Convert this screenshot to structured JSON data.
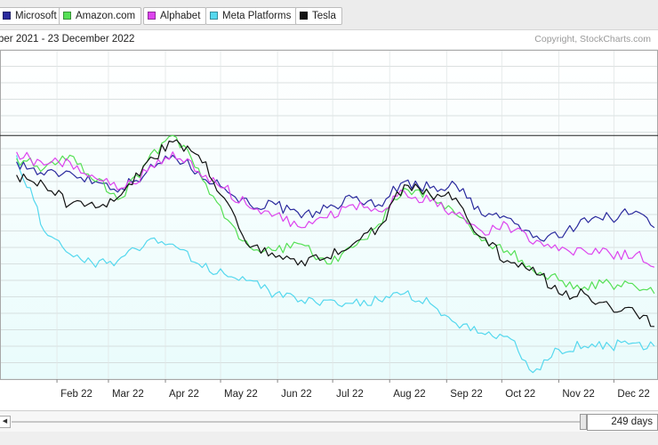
{
  "legend": [
    {
      "name": "Microsoft",
      "color": "#2b2b9e"
    },
    {
      "name": "Amazon.com",
      "color": "#55e055"
    },
    {
      "name": "Alphabet",
      "color": "#dd44ee"
    },
    {
      "name": "Meta Platforms",
      "color": "#55d8ee"
    },
    {
      "name": "Tesla",
      "color": "#111111"
    }
  ],
  "header": {
    "date_range": "ber 2021 - 23 December 2022",
    "copyright": "Copyright, StockCharts.com"
  },
  "footer": {
    "days_value": "249 days",
    "scroll_left_icon": "left-arrow-icon"
  },
  "chart_data": {
    "type": "line",
    "title": "",
    "xlabel": "",
    "ylabel": "",
    "legend_position": "top",
    "grid": true,
    "background": "#e9fcfc",
    "x": [
      "2022-01-10",
      "2022-01-25",
      "2022-02-08",
      "2022-02-22",
      "2022-03-08",
      "2022-03-22",
      "2022-04-05",
      "2022-04-19",
      "2022-05-03",
      "2022-05-17",
      "2022-05-31",
      "2022-06-14",
      "2022-06-28",
      "2022-07-12",
      "2022-07-26",
      "2022-08-09",
      "2022-08-23",
      "2022-09-06",
      "2022-09-20",
      "2022-10-04",
      "2022-10-18",
      "2022-11-01",
      "2022-11-15",
      "2022-11-29",
      "2022-12-13",
      "2022-12-23"
    ],
    "x_tick_labels": [
      "Feb 22",
      "Mar 22",
      "Apr 22",
      "May 22",
      "Jun 22",
      "Jul 22",
      "Aug 22",
      "Sep 22",
      "Oct 22",
      "Nov 22",
      "Dec 22"
    ],
    "ylim": [
      0,
      10
    ],
    "reference_line": 7.4,
    "series": [
      {
        "name": "Microsoft",
        "color": "#2b2b9e",
        "values": [
          6.6,
          6.2,
          6.3,
          6.0,
          5.8,
          6.3,
          6.8,
          6.3,
          5.8,
          5.3,
          5.3,
          4.9,
          5.2,
          5.5,
          5.3,
          6.0,
          5.8,
          5.9,
          5.0,
          4.9,
          4.3,
          4.3,
          4.9,
          4.9,
          5.1,
          4.6
        ]
      },
      {
        "name": "Amazon.com",
        "color": "#55e055",
        "values": [
          6.7,
          6.4,
          6.8,
          6.0,
          5.5,
          6.6,
          7.4,
          6.4,
          4.9,
          4.0,
          3.9,
          4.1,
          3.5,
          4.0,
          4.7,
          5.8,
          5.6,
          5.0,
          4.2,
          3.9,
          3.3,
          3.0,
          2.8,
          2.9,
          2.8,
          2.6
        ]
      },
      {
        "name": "Alphabet",
        "color": "#dd44ee",
        "values": [
          6.9,
          6.5,
          6.6,
          6.1,
          5.8,
          6.3,
          6.9,
          6.3,
          5.8,
          5.2,
          5.0,
          4.6,
          4.9,
          5.3,
          5.1,
          5.7,
          5.4,
          5.0,
          4.5,
          4.7,
          4.1,
          3.9,
          3.9,
          3.8,
          3.8,
          3.4
        ]
      },
      {
        "name": "Meta Platforms",
        "color": "#55d8ee",
        "values": [
          6.8,
          4.5,
          3.8,
          3.4,
          3.7,
          4.2,
          4.1,
          3.5,
          3.2,
          3.0,
          2.6,
          2.4,
          2.4,
          2.3,
          2.4,
          2.6,
          2.3,
          1.7,
          1.4,
          1.3,
          0.2,
          0.9,
          1.0,
          1.0,
          1.1,
          1.0
        ]
      },
      {
        "name": "Tesla",
        "color": "#111111",
        "values": [
          6.2,
          5.9,
          5.3,
          5.2,
          5.6,
          6.6,
          7.2,
          6.8,
          5.5,
          4.0,
          3.7,
          3.6,
          3.7,
          4.1,
          4.6,
          5.9,
          5.6,
          5.5,
          4.3,
          3.6,
          3.4,
          2.6,
          2.6,
          2.2,
          2.0,
          1.6
        ]
      }
    ]
  }
}
